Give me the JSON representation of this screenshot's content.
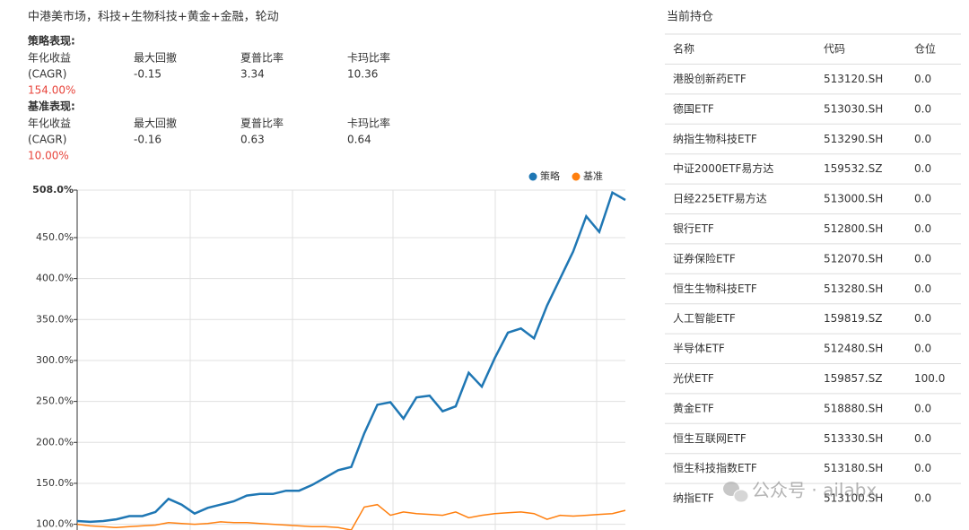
{
  "header": {
    "title": "中港美市场，科技+生物科技+黄金+金融，轮动"
  },
  "strategy": {
    "heading": "策略表现:",
    "metrics": [
      {
        "name": "年化收益",
        "note": "(CAGR)",
        "value": "154.00%"
      },
      {
        "name": "最大回撤",
        "value": "-0.15"
      },
      {
        "name": "夏普比率",
        "value": "3.34"
      },
      {
        "name": "卡玛比率",
        "value": "10.36"
      }
    ]
  },
  "benchmark": {
    "heading": "基准表现:",
    "metrics": [
      {
        "name": "年化收益",
        "note": "(CAGR)",
        "value": "10.00%"
      },
      {
        "name": "最大回撤",
        "value": "-0.16"
      },
      {
        "name": "夏普比率",
        "value": "0.63"
      },
      {
        "name": "卡玛比率",
        "value": "0.64"
      }
    ]
  },
  "chart_data": {
    "type": "line",
    "categories": [
      null,
      null,
      null,
      null,
      null,
      null,
      null,
      null,
      null,
      null,
      null,
      null,
      null,
      null,
      null,
      null,
      null,
      null,
      null,
      null,
      null,
      null,
      null,
      null,
      null,
      null,
      null,
      null,
      null,
      null,
      null,
      null,
      null,
      null,
      null,
      null,
      null,
      null,
      null,
      null,
      null,
      null,
      null
    ],
    "series": [
      {
        "name": "策略",
        "color": "#1f77b4",
        "values": [
          104,
          103,
          104,
          106,
          110,
          110,
          115,
          131,
          124,
          113,
          120,
          124,
          128,
          135,
          137,
          137,
          141,
          141,
          148,
          157,
          166,
          170,
          211,
          246,
          249,
          229,
          255,
          257,
          238,
          244,
          285,
          268,
          303,
          334,
          339,
          327,
          367,
          400,
          433,
          476,
          457,
          505,
          496
        ]
      },
      {
        "name": "基准",
        "color": "#ff7f0e",
        "values": [
          100,
          98,
          97,
          96,
          97,
          98,
          99,
          102,
          101,
          100,
          101,
          103,
          102,
          102,
          101,
          100,
          99,
          98,
          97,
          97,
          96,
          93,
          121,
          124,
          111,
          115,
          113,
          112,
          111,
          115,
          108,
          111,
          113,
          114,
          115,
          113,
          106,
          111,
          110,
          111,
          112,
          113,
          117
        ]
      }
    ],
    "ylim": [
      93,
      508
    ],
    "yticks": [
      {
        "value": 100,
        "label": "100.0%"
      },
      {
        "value": 150,
        "label": "150.0%"
      },
      {
        "value": 200,
        "label": "200.0%"
      },
      {
        "value": 250,
        "label": "250.0%"
      },
      {
        "value": 300,
        "label": "300.0%"
      },
      {
        "value": 350,
        "label": "350.0%"
      },
      {
        "value": 400,
        "label": "400.0%"
      },
      {
        "value": 450,
        "label": "450.0%"
      },
      {
        "value": 508,
        "label": "508.0%"
      }
    ],
    "grid": true,
    "legend": "top-right"
  },
  "holdings": {
    "title": "当前持仓",
    "columns": [
      "名称",
      "代码",
      "仓位"
    ],
    "rows": [
      [
        "港股创新药ETF",
        "513120.SH",
        "0.0"
      ],
      [
        "德国ETF",
        "513030.SH",
        "0.0"
      ],
      [
        "纳指生物科技ETF",
        "513290.SH",
        "0.0"
      ],
      [
        "中证2000ETF易方达",
        "159532.SZ",
        "0.0"
      ],
      [
        "日经225ETF易方达",
        "513000.SH",
        "0.0"
      ],
      [
        "银行ETF",
        "512800.SH",
        "0.0"
      ],
      [
        "证券保险ETF",
        "512070.SH",
        "0.0"
      ],
      [
        "恒生生物科技ETF",
        "513280.SH",
        "0.0"
      ],
      [
        "人工智能ETF",
        "159819.SZ",
        "0.0"
      ],
      [
        "半导体ETF",
        "512480.SH",
        "0.0"
      ],
      [
        "光伏ETF",
        "159857.SZ",
        "100.0"
      ],
      [
        "黄金ETF",
        "518880.SH",
        "0.0"
      ],
      [
        "恒生互联网ETF",
        "513330.SH",
        "0.0"
      ],
      [
        "恒生科技指数ETF",
        "513180.SH",
        "0.0"
      ],
      [
        "纳指ETF",
        "513100.SH",
        "0.0"
      ]
    ]
  },
  "watermark": "公众号 · ailabx"
}
